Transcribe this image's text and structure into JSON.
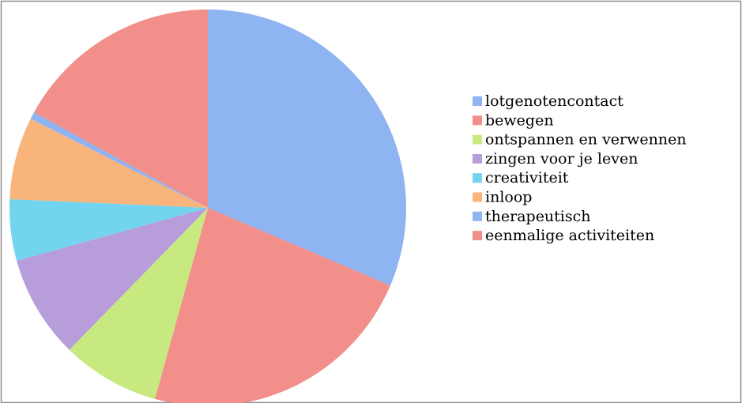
{
  "chart_data": {
    "type": "pie",
    "categories": [
      "lotgenotencontact",
      "bewegen",
      "ontspannen en verwennen",
      "zingen voor je leven",
      "creativiteit",
      "inloop",
      "therapeutisch",
      "eenmalige activiteiten"
    ],
    "values": [
      31.4,
      22.9,
      8.0,
      8.4,
      5.0,
      6.7,
      0.6,
      17.0
    ],
    "colors": [
      "#8fb4f2",
      "#f28f8a",
      "#c8e880",
      "#b89ddb",
      "#72d4ee",
      "#f9b47c",
      "#8fb4f2",
      "#f28f8a"
    ],
    "legend": "right"
  }
}
